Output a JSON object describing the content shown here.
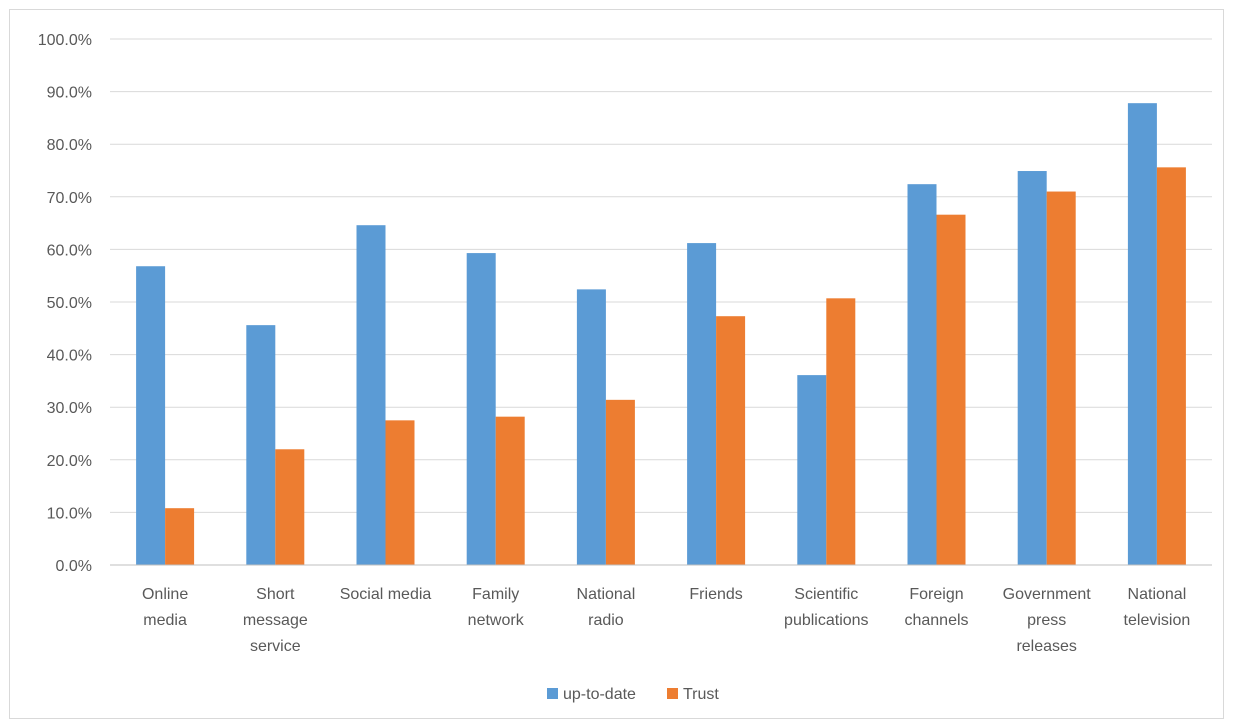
{
  "chart_data": {
    "type": "bar",
    "categories": [
      [
        "Online",
        "media"
      ],
      [
        "Short",
        "message",
        "service"
      ],
      [
        "Social media"
      ],
      [
        "Family",
        "network"
      ],
      [
        "National",
        "radio"
      ],
      [
        "Friends"
      ],
      [
        "Scientific",
        "publications"
      ],
      [
        "Foreign",
        "channels"
      ],
      [
        "Government",
        "press",
        "releases"
      ],
      [
        "National",
        "television"
      ]
    ],
    "series": [
      {
        "name": "up-to-date",
        "color": "#5b9bd5",
        "values": [
          56.8,
          45.6,
          64.6,
          59.3,
          52.4,
          61.2,
          36.1,
          72.4,
          74.9,
          87.8
        ]
      },
      {
        "name": "Trust",
        "color": "#ed7d31",
        "values": [
          10.8,
          22.0,
          27.5,
          28.2,
          31.4,
          47.3,
          50.7,
          66.6,
          71.0,
          75.6
        ]
      }
    ],
    "y_ticks": [
      "0.0%",
      "10.0%",
      "20.0%",
      "30.0%",
      "40.0%",
      "50.0%",
      "60.0%",
      "70.0%",
      "80.0%",
      "90.0%",
      "100.0%"
    ],
    "ylim": [
      0,
      100
    ],
    "grid": true,
    "legend_position": "bottom",
    "gridline_color": "#d9d9d9",
    "axis_color": "#bfbfbf"
  }
}
